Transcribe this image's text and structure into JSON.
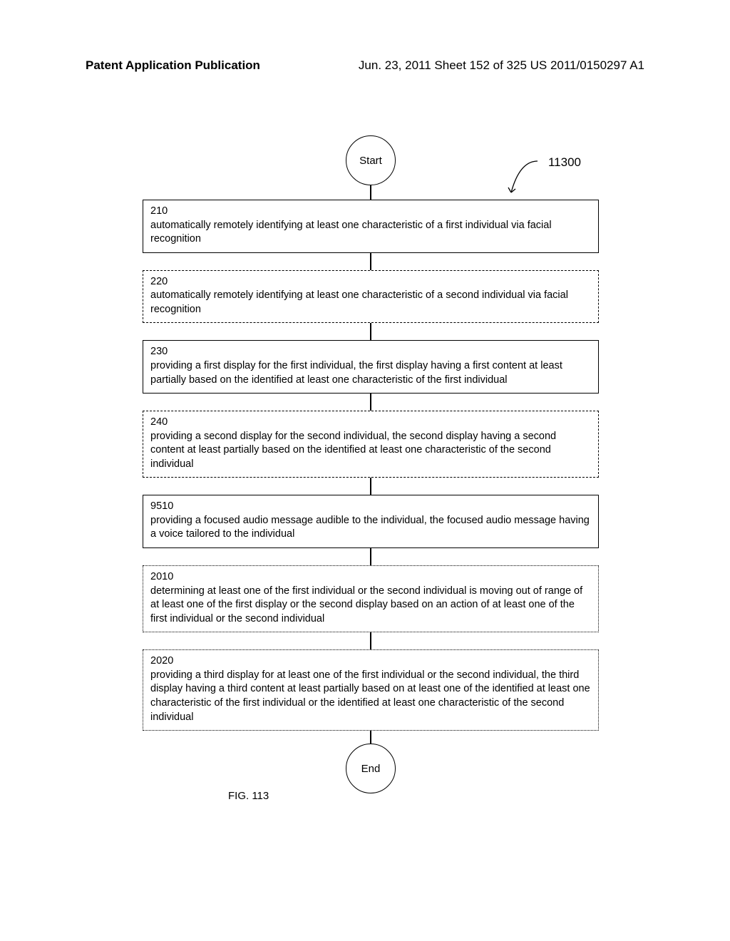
{
  "header": {
    "left": "Patent Application Publication",
    "right": "Jun. 23, 2011  Sheet 152 of 325   US 2011/0150297 A1"
  },
  "diagram": {
    "ref_number": "11300",
    "start_label": "Start",
    "end_label": "End",
    "fig_caption": "FIG. 113",
    "steps": [
      {
        "num": "210",
        "text": "automatically remotely identifying at least one characteristic of a first individual via facial recognition",
        "border": "solid"
      },
      {
        "num": "220",
        "text": "automatically remotely identifying at least one characteristic of a second individual via facial recognition",
        "border": "dashed"
      },
      {
        "num": "230",
        "text": "providing a first display for the first individual, the first display having a first content at least partially based on the identified at least one characteristic of the first individual",
        "border": "solid"
      },
      {
        "num": "240",
        "text": "providing a second display for the second individual, the second display having a second content at least partially based on the identified at least one characteristic of the second individual",
        "border": "dashed"
      },
      {
        "num": "9510",
        "text": "providing a focused audio message audible to the individual, the focused audio message having a voice tailored to the individual",
        "border": "solid"
      },
      {
        "num": "2010",
        "text": "determining at least one of the first individual or the second individual is moving out of range of at least one of the first display or the second display based on an action of at least one of the first individual or the second individual",
        "border": "dotted"
      },
      {
        "num": "2020",
        "text": "providing a third display for at least one of the first individual or the second individual, the third display having a third content at least partially based on at least one of the identified at least one characteristic of the first individual or the identified at least one characteristic of the second individual",
        "border": "dotted"
      }
    ]
  }
}
